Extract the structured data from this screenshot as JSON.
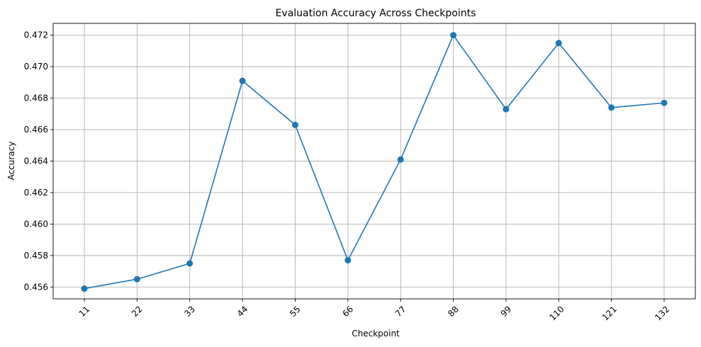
{
  "chart_data": {
    "type": "line",
    "title": "Evaluation Accuracy Across Checkpoints",
    "xlabel": "Checkpoint",
    "ylabel": "Accuracy",
    "categories": [
      "11",
      "22",
      "33",
      "44",
      "55",
      "66",
      "77",
      "88",
      "99",
      "110",
      "121",
      "132"
    ],
    "series": [
      {
        "values": [
          0.4559,
          0.4565,
          0.4575,
          0.4691,
          0.4663,
          0.4577,
          0.4641,
          0.472,
          0.4673,
          0.4715,
          0.4674,
          0.4677
        ],
        "color": "#1f77b4",
        "marker": "circle"
      }
    ],
    "ylim": [
      0.45525,
      0.47275
    ],
    "yticks": [
      0.456,
      0.458,
      0.46,
      0.462,
      0.464,
      0.466,
      0.468,
      0.47,
      0.472
    ],
    "ytick_labels": [
      "0.456",
      "0.458",
      "0.460",
      "0.462",
      "0.464",
      "0.466",
      "0.468",
      "0.470",
      "0.472"
    ],
    "grid": true,
    "xtick_rotation": 45
  }
}
